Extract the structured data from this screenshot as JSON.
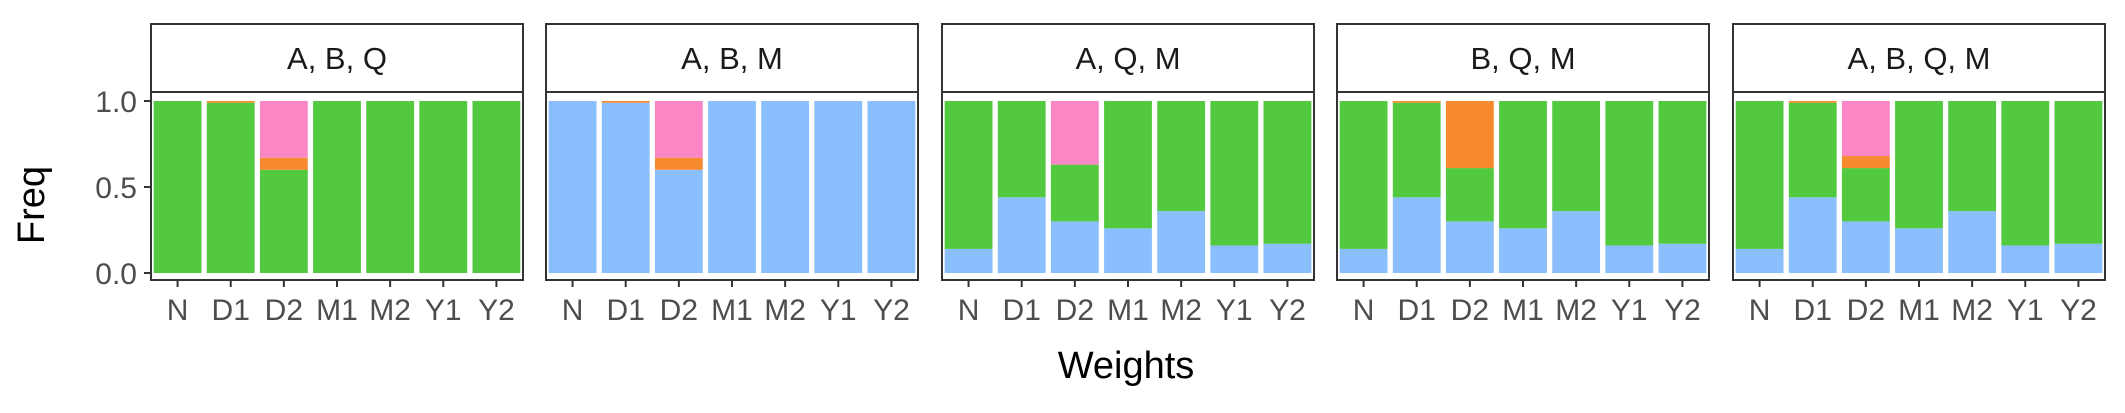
{
  "chart_data": {
    "type": "bar",
    "stacked": true,
    "xlabel": "Weights",
    "ylabel": "Freq",
    "ylim": [
      0,
      1
    ],
    "yticks": [
      "0.0",
      "0.5",
      "1.0"
    ],
    "ytick_values": [
      0,
      0.5,
      1.0
    ],
    "grid": false,
    "legend": "none",
    "categories": [
      "N",
      "D1",
      "D2",
      "M1",
      "M2",
      "Y1",
      "Y2"
    ],
    "colors": {
      "blue": "#8bbefc",
      "green": "#52c93f",
      "orange": "#f7892e",
      "pink": "#fb86c5"
    },
    "stack_order": [
      "blue",
      "green",
      "orange",
      "pink"
    ],
    "facets": [
      {
        "label": "A, B, Q",
        "stacks": [
          {
            "blue": 0,
            "green": 1.0,
            "orange": 0,
            "pink": 0
          },
          {
            "blue": 0,
            "green": 0.99,
            "orange": 0.01,
            "pink": 0
          },
          {
            "blue": 0,
            "green": 0.6,
            "orange": 0.07,
            "pink": 0.33
          },
          {
            "blue": 0,
            "green": 1.0,
            "orange": 0,
            "pink": 0
          },
          {
            "blue": 0,
            "green": 1.0,
            "orange": 0,
            "pink": 0
          },
          {
            "blue": 0,
            "green": 1.0,
            "orange": 0,
            "pink": 0
          },
          {
            "blue": 0,
            "green": 1.0,
            "orange": 0,
            "pink": 0
          }
        ]
      },
      {
        "label": "A, B, M",
        "stacks": [
          {
            "blue": 1.0,
            "green": 0,
            "orange": 0,
            "pink": 0
          },
          {
            "blue": 0.99,
            "green": 0,
            "orange": 0.01,
            "pink": 0
          },
          {
            "blue": 0.6,
            "green": 0,
            "orange": 0.07,
            "pink": 0.33
          },
          {
            "blue": 1.0,
            "green": 0,
            "orange": 0,
            "pink": 0
          },
          {
            "blue": 1.0,
            "green": 0,
            "orange": 0,
            "pink": 0
          },
          {
            "blue": 1.0,
            "green": 0,
            "orange": 0,
            "pink": 0
          },
          {
            "blue": 1.0,
            "green": 0,
            "orange": 0,
            "pink": 0
          }
        ]
      },
      {
        "label": "A, Q, M",
        "stacks": [
          {
            "blue": 0.14,
            "green": 0.86,
            "orange": 0,
            "pink": 0
          },
          {
            "blue": 0.44,
            "green": 0.56,
            "orange": 0,
            "pink": 0
          },
          {
            "blue": 0.3,
            "green": 0.33,
            "orange": 0,
            "pink": 0.37
          },
          {
            "blue": 0.26,
            "green": 0.74,
            "orange": 0,
            "pink": 0
          },
          {
            "blue": 0.36,
            "green": 0.64,
            "orange": 0,
            "pink": 0
          },
          {
            "blue": 0.16,
            "green": 0.84,
            "orange": 0,
            "pink": 0
          },
          {
            "blue": 0.17,
            "green": 0.83,
            "orange": 0,
            "pink": 0
          }
        ]
      },
      {
        "label": "B, Q, M",
        "stacks": [
          {
            "blue": 0.14,
            "green": 0.86,
            "orange": 0,
            "pink": 0
          },
          {
            "blue": 0.44,
            "green": 0.55,
            "orange": 0.01,
            "pink": 0
          },
          {
            "blue": 0.3,
            "green": 0.31,
            "orange": 0.39,
            "pink": 0
          },
          {
            "blue": 0.26,
            "green": 0.74,
            "orange": 0,
            "pink": 0
          },
          {
            "blue": 0.36,
            "green": 0.64,
            "orange": 0,
            "pink": 0
          },
          {
            "blue": 0.16,
            "green": 0.84,
            "orange": 0,
            "pink": 0
          },
          {
            "blue": 0.17,
            "green": 0.83,
            "orange": 0,
            "pink": 0
          }
        ]
      },
      {
        "label": "A, B, Q, M",
        "stacks": [
          {
            "blue": 0.14,
            "green": 0.86,
            "orange": 0,
            "pink": 0
          },
          {
            "blue": 0.44,
            "green": 0.55,
            "orange": 0.01,
            "pink": 0
          },
          {
            "blue": 0.3,
            "green": 0.31,
            "orange": 0.07,
            "pink": 0.32
          },
          {
            "blue": 0.26,
            "green": 0.74,
            "orange": 0,
            "pink": 0
          },
          {
            "blue": 0.36,
            "green": 0.64,
            "orange": 0,
            "pink": 0
          },
          {
            "blue": 0.16,
            "green": 0.84,
            "orange": 0,
            "pink": 0
          },
          {
            "blue": 0.17,
            "green": 0.83,
            "orange": 0,
            "pink": 0
          }
        ]
      }
    ]
  }
}
